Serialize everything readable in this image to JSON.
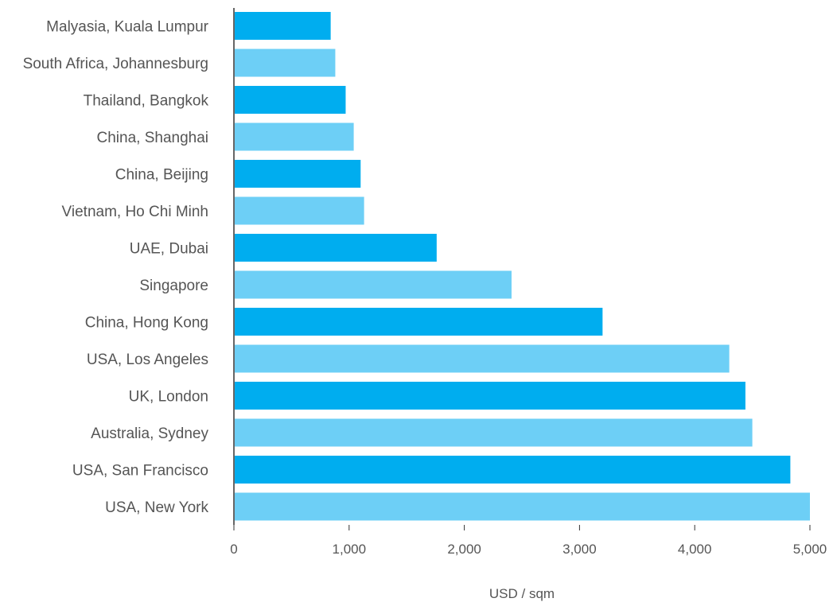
{
  "chart_data": {
    "type": "bar",
    "orientation": "horizontal",
    "title": "",
    "xlabel": "USD / sqm",
    "ylabel": "",
    "xlim": [
      0,
      5000
    ],
    "x_ticks": [
      0,
      1000,
      2000,
      3000,
      4000,
      5000
    ],
    "x_tick_labels": [
      "0",
      "1,000",
      "2,000",
      "3,000",
      "4,000",
      "5,000"
    ],
    "grid": false,
    "categories": [
      "Malyasia, Kuala Lumpur",
      "South Africa, Johannesburg",
      "Thailand, Bangkok",
      "China, Shanghai",
      "China, Beijing",
      "Vietnam, Ho Chi Minh",
      "UAE, Dubai",
      "Singapore",
      "China, Hong Kong",
      "USA, Los Angeles",
      "UK, London",
      "Australia, Sydney",
      "USA, San Francisco",
      "USA, New York"
    ],
    "values": [
      840,
      880,
      970,
      1040,
      1100,
      1130,
      1760,
      2410,
      3200,
      4300,
      4440,
      4500,
      4830,
      5000
    ],
    "colors": [
      "#00adef",
      "#6dcff6"
    ]
  }
}
